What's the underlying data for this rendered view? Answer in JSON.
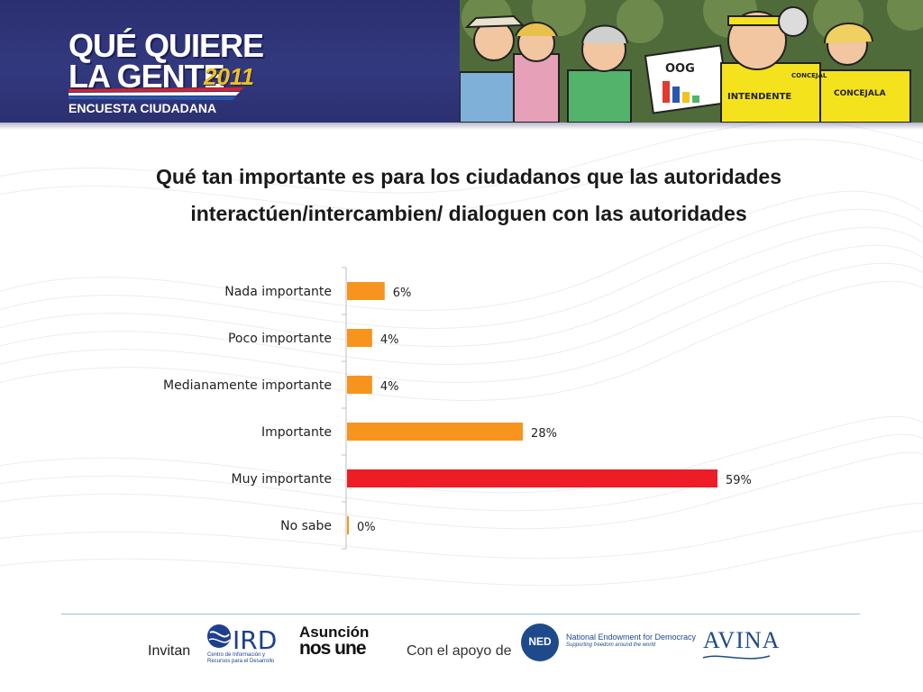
{
  "header": {
    "logo_line1": "QUÉ QUIERE",
    "logo_line2": "LA GENTE",
    "logo_year": "2011",
    "logo_subtitle": "ENCUESTA CIUDADANA",
    "sign_text": "OOG",
    "shirt_text_1": "INTENDENTE",
    "shirt_text_2": "CONCEJALA",
    "badge_text": "CONCEJAL"
  },
  "colors": {
    "header_bg": "#2f3578",
    "bar_default": "#f7941d",
    "bar_highlight": "#ee1c25"
  },
  "chart_data": {
    "type": "bar",
    "orientation": "horizontal",
    "title": "Qué tan importante es para los ciudadanos que las autoridades interactúen/intercambien/ dialoguen con las autoridades",
    "title_lines": [
      "Qué tan importante es para los ciudadanos que las autoridades",
      "interactúen/intercambien/ dialoguen con las autoridades"
    ],
    "categories": [
      "Nada importante",
      "Poco importante",
      "Medianamente importante",
      "Importante",
      "Muy importante",
      "No sabe"
    ],
    "values": [
      6,
      4,
      4,
      28,
      59,
      0
    ],
    "value_labels": [
      "6%",
      "4%",
      "4%",
      "28%",
      "59%",
      "0%"
    ],
    "highlight": "Muy importante",
    "xlim": [
      0,
      70
    ],
    "grid": false,
    "legend": "none"
  },
  "footer": {
    "invitan": "Invitan",
    "apoyo": "Con el apoyo de",
    "ird_logo_text": "IRD",
    "ird_sub": "Centro de Información y Recursos para el Desarrollo",
    "asuncion_line1": "Asunción",
    "asuncion_line2": "nos une",
    "ned_logo_text": "NED",
    "ned_name": "National Endowment for Democracy",
    "ned_tagline": "Supporting freedom around the world",
    "avina_text": "AVINA"
  }
}
